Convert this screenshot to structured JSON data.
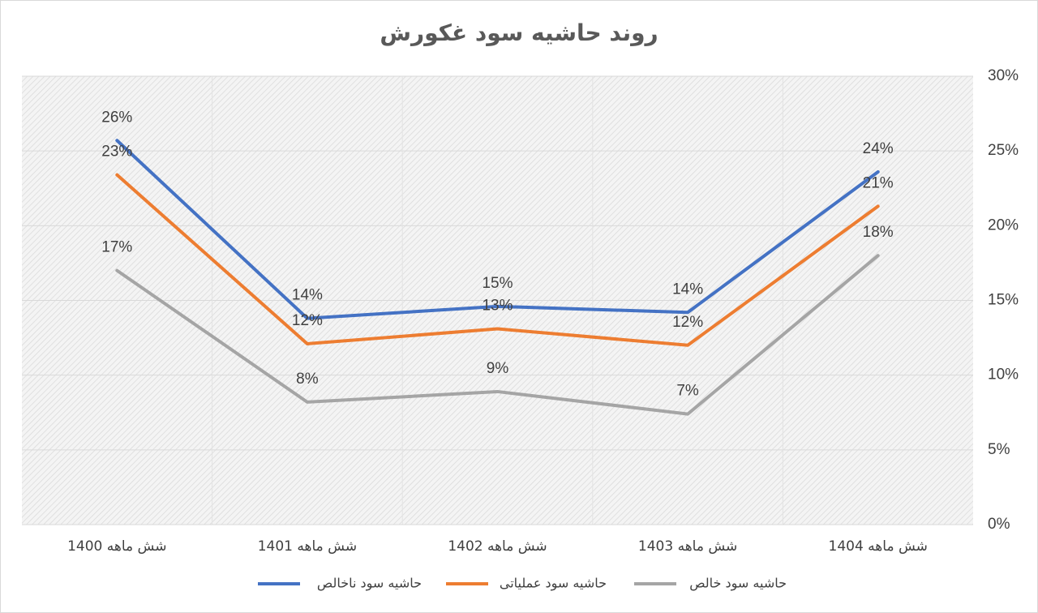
{
  "chart_data": {
    "type": "line",
    "title": "روند حاشیه سود غکورش",
    "categories": [
      "شش ماهه 1400",
      "شش ماهه 1401",
      "شش ماهه 1402",
      "شش ماهه 1403",
      "شش ماهه 1404"
    ],
    "series": [
      {
        "name": "حاشیه سود ناخالص",
        "color": "#4472c4",
        "values": [
          25.7,
          13.8,
          14.6,
          14.2,
          23.6
        ],
        "value_labels": [
          "26%",
          "14%",
          "15%",
          "14%",
          "24%"
        ]
      },
      {
        "name": "حاشیه سود عملیاتی",
        "color": "#ed7d31",
        "values": [
          23.4,
          12.1,
          13.1,
          12.0,
          21.3
        ],
        "value_labels": [
          "23%",
          "12%",
          "13%",
          "12%",
          "21%"
        ]
      },
      {
        "name": "حاشیه سود خالص",
        "color": "#a5a5a5",
        "values": [
          17.0,
          8.2,
          8.9,
          7.4,
          18.0
        ],
        "value_labels": [
          "17%",
          "8%",
          "9%",
          "7%",
          "18%"
        ]
      }
    ],
    "ylim": [
      0,
      30
    ],
    "yticks": [
      {
        "value": 0,
        "label": "0%"
      },
      {
        "value": 5,
        "label": "5%"
      },
      {
        "value": 10,
        "label": "10%"
      },
      {
        "value": 15,
        "label": "15%"
      },
      {
        "value": 20,
        "label": "20%"
      },
      {
        "value": 25,
        "label": "25%"
      },
      {
        "value": 30,
        "label": "30%"
      }
    ],
    "grid": true,
    "legend": "bottom"
  }
}
